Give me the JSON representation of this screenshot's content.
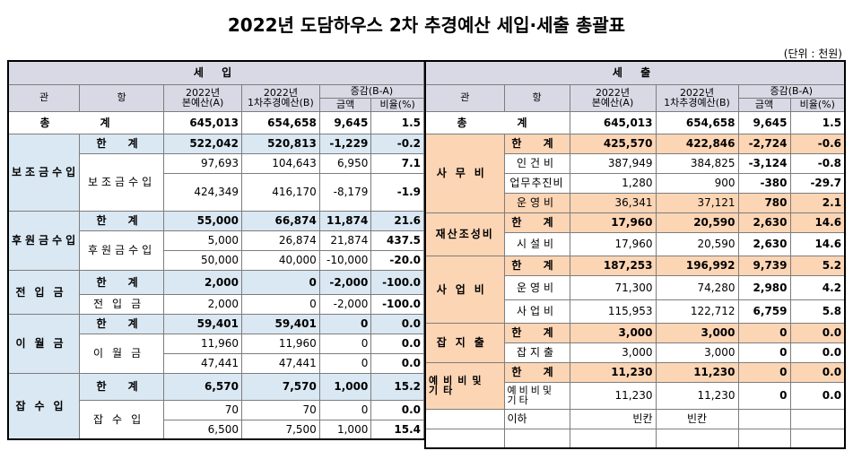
{
  "title": "2022년 도담하우스 2차 추경예산 세입·세출 총괄표",
  "unit": "(단위 : 천원)",
  "headers": {
    "income": "세 입",
    "expense": "세 출",
    "gwan": "관",
    "hang": "항",
    "col_original_1": "2022년",
    "col_original_2": "본예산(A)",
    "col_revised_1": "2022년",
    "col_revised_2": "1차추경예산(B)",
    "col_diff": "증감(B-A)",
    "col_amount": "금액",
    "col_ratio": "비율(%)"
  },
  "total_label_1": "총",
  "total_label_2": "계",
  "subtotal_label_1": "한",
  "subtotal_label_2": "계",
  "income": {
    "total": {
      "a": "645,013",
      "b": "654,658",
      "diff": "9,645",
      "ratio": "1.5"
    },
    "groups": [
      {
        "gwan": "보조금수입",
        "sub": {
          "a": "522,042",
          "b": "520,813",
          "diff": "-1,229",
          "ratio": "-0.2"
        },
        "hang": "보조금수입",
        "rows": [
          {
            "a": "97,693",
            "b": "104,643",
            "diff": "6,950",
            "ratio": "7.1"
          },
          {
            "a": "424,349",
            "b": "416,170",
            "diff": "-8,179",
            "ratio": "-1.9"
          }
        ]
      },
      {
        "gwan": "후원금수입",
        "sub": {
          "a": "55,000",
          "b": "66,874",
          "diff": "11,874",
          "ratio": "21.6"
        },
        "hang": "후원금수입",
        "rows": [
          {
            "a": "5,000",
            "b": "26,874",
            "diff": "21,874",
            "ratio": "437.5"
          },
          {
            "a": "50,000",
            "b": "40,000",
            "diff": "-10,000",
            "ratio": "-20.0"
          }
        ]
      },
      {
        "gwan": "전입금",
        "sub": {
          "a": "2,000",
          "b": "0",
          "diff": "-2,000",
          "ratio": "-100.0"
        },
        "hang": "전입금",
        "rows": [
          {
            "a": "2,000",
            "b": "0",
            "diff": "-2,000",
            "ratio": "-100.0"
          }
        ]
      },
      {
        "gwan": "이월금",
        "sub": {
          "a": "59,401",
          "b": "59,401",
          "diff": "0",
          "ratio": "0.0"
        },
        "hang": "이월금",
        "rows": [
          {
            "a": "11,960",
            "b": "11,960",
            "diff": "0",
            "ratio": "0.0"
          },
          {
            "a": "47,441",
            "b": "47,441",
            "diff": "0",
            "ratio": "0.0"
          }
        ]
      },
      {
        "gwan": "잡수입",
        "sub": {
          "a": "6,570",
          "b": "7,570",
          "diff": "1,000",
          "ratio": "15.2"
        },
        "hang": "잡수입",
        "rows": [
          {
            "a": "70",
            "b": "70",
            "diff": "0",
            "ratio": "0.0"
          },
          {
            "a": "6,500",
            "b": "7,500",
            "diff": "1,000",
            "ratio": "15.4"
          }
        ]
      }
    ]
  },
  "expense": {
    "total": {
      "a": "645,013",
      "b": "654,658",
      "diff": "9,645",
      "ratio": "1.5"
    },
    "groups": [
      {
        "gwan": "사무비",
        "sub": {
          "a": "425,570",
          "b": "422,846",
          "diff": "-2,724",
          "ratio": "-0.6"
        },
        "rows": [
          {
            "hang": "인건비",
            "a": "387,949",
            "b": "384,825",
            "diff": "-3,124",
            "ratio": "-0.8"
          },
          {
            "hang": "업무추진비",
            "a": "1,280",
            "b": "900",
            "diff": "-380",
            "ratio": "-29.7"
          },
          {
            "hang": "운영비",
            "a": "36,341",
            "b": "37,121",
            "diff": "780",
            "ratio": "2.1"
          }
        ]
      },
      {
        "gwan": "재산조성비",
        "sub": {
          "a": "17,960",
          "b": "20,590",
          "diff": "2,630",
          "ratio": "14.6"
        },
        "rows": [
          {
            "hang": "시설비",
            "a": "17,960",
            "b": "20,590",
            "diff": "2,630",
            "ratio": "14.6"
          }
        ]
      },
      {
        "gwan": "사업비",
        "sub": {
          "a": "187,253",
          "b": "196,992",
          "diff": "9,739",
          "ratio": "5.2"
        },
        "rows": [
          {
            "hang": "운영비",
            "a": "71,300",
            "b": "74,280",
            "diff": "2,980",
            "ratio": "4.2"
          },
          {
            "hang": "사업비",
            "a": "115,953",
            "b": "122,712",
            "diff": "6,759",
            "ratio": "5.8"
          }
        ]
      },
      {
        "gwan": "잡지출",
        "sub": {
          "a": "3,000",
          "b": "3,000",
          "diff": "0",
          "ratio": "0.0"
        },
        "rows": [
          {
            "hang": "잡지출",
            "a": "3,000",
            "b": "3,000",
            "diff": "0",
            "ratio": "0.0"
          }
        ]
      },
      {
        "gwan_1": "예비비및",
        "gwan_2": "기타",
        "sub": {
          "a": "11,230",
          "b": "11,230",
          "diff": "0",
          "ratio": "0.0"
        },
        "rows": [
          {
            "hang_1": "예비비및",
            "hang_2": "기타",
            "a": "11,230",
            "b": "11,230",
            "diff": "0",
            "ratio": "0.0"
          }
        ]
      }
    ],
    "footer": {
      "hang": "이하",
      "a": "빈칸",
      "b": "빈칸"
    }
  }
}
